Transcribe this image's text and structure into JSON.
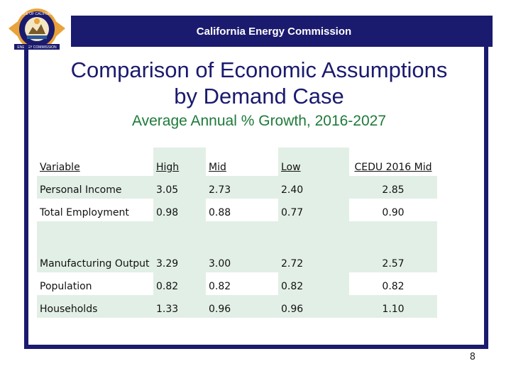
{
  "header": {
    "agency_name": "California Energy Commission",
    "seal_text_top": "STATE OF CALIFORNIA",
    "seal_text_bottom": "ENERGY COMMISSION"
  },
  "slide": {
    "title_line1": "Comparison of Economic Assumptions",
    "title_line2": "by Demand Case",
    "subtitle": "Average Annual % Growth, 2016-2027",
    "page_number": "8"
  },
  "table": {
    "headers": [
      "Variable",
      "High",
      "Mid",
      "Low",
      "CEDU 2016 Mid"
    ],
    "rows": [
      {
        "variable": "Personal Income",
        "high": "3.05",
        "mid": "2.73",
        "low": "2.40",
        "cedu": "2.85"
      },
      {
        "variable": "Total Employment",
        "high": "0.98",
        "mid": "0.88",
        "low": "0.77",
        "cedu": "0.90"
      },
      {
        "variable": "Manufacturing Output",
        "high": "3.29",
        "mid": "3.00",
        "low": "2.72",
        "cedu": "2.57"
      },
      {
        "variable": "Population",
        "high": "0.82",
        "mid": "0.82",
        "low": "0.82",
        "cedu": "0.82"
      },
      {
        "variable": "Households",
        "high": "1.33",
        "mid": "0.96",
        "low": "0.96",
        "cedu": "1.10"
      }
    ]
  },
  "colors": {
    "navy": "#1a1a6e",
    "subtitle_green": "#1e7a3a",
    "cell_shade": "#e2efe6",
    "seal_gold": "#e8a33a"
  }
}
